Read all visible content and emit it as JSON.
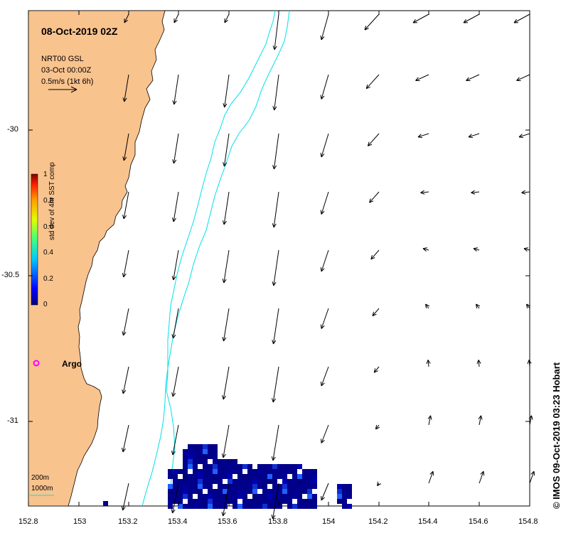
{
  "title": "08-Oct-2019 02Z",
  "source_line1": "NRT00 GSL",
  "source_line2": "03-Oct 00:00Z",
  "scale_label": "0.5m/s (1kt 6h)",
  "colorbar": {
    "title": "std dev of 4hr SST comp",
    "ticks": [
      "0",
      "0.2",
      "0.4",
      "0.6",
      "0.8",
      "1"
    ]
  },
  "argo_label": "Argo",
  "isobath_labels": [
    "200m",
    "1000m"
  ],
  "credit": "© IMOS 09-Oct-2019 03:23 Hobart",
  "axes": {
    "x_ticks": [
      "152.8",
      "153",
      "153.2",
      "153.4",
      "153.6",
      "153.8",
      "154",
      "154.2",
      "154.4",
      "154.6",
      "154.8"
    ],
    "y_ticks": [
      "-30",
      "-30.5",
      "-31"
    ]
  },
  "colors": {
    "land": "#f9c38e",
    "isobath": "#00e0e8",
    "argo": "#ff00ff",
    "sst_low": "#00008b"
  }
}
